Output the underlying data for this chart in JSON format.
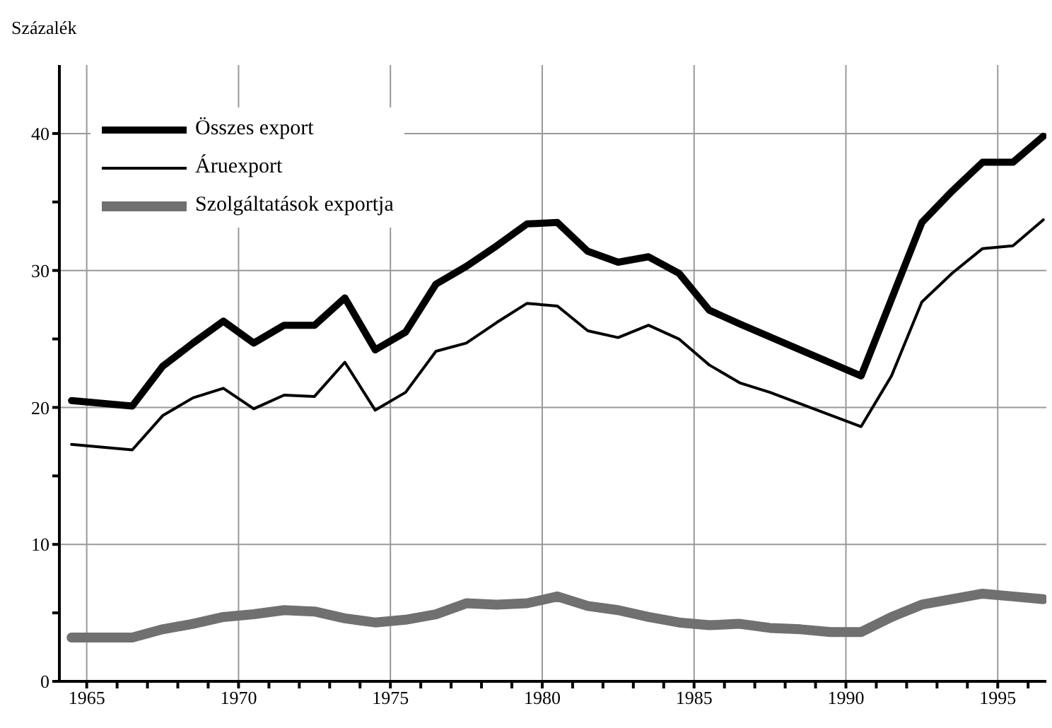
{
  "chart_data": {
    "type": "line",
    "ylabel": "Százalék",
    "xlim": [
      1964.1,
      1996.6
    ],
    "ylim": [
      0,
      45
    ],
    "xticks": [
      1965,
      {
        "value": 1966,
        "label": null
      },
      {
        "value": 1967,
        "label": null
      },
      {
        "value": 1968,
        "label": null
      },
      {
        "value": 1969,
        "label": null
      },
      1970,
      {
        "value": 1971,
        "label": null
      },
      {
        "value": 1972,
        "label": null
      },
      {
        "value": 1973,
        "label": null
      },
      {
        "value": 1974,
        "label": null
      },
      1975,
      {
        "value": 1976,
        "label": null
      },
      {
        "value": 1977,
        "label": null
      },
      {
        "value": 1978,
        "label": null
      },
      {
        "value": 1979,
        "label": null
      },
      1980,
      {
        "value": 1981,
        "label": null
      },
      {
        "value": 1982,
        "label": null
      },
      {
        "value": 1983,
        "label": null
      },
      {
        "value": 1984,
        "label": null
      },
      1985,
      {
        "value": 1986,
        "label": null
      },
      {
        "value": 1987,
        "label": null
      },
      {
        "value": 1988,
        "label": null
      },
      {
        "value": 1989,
        "label": null
      },
      1990,
      {
        "value": 1991,
        "label": null
      },
      {
        "value": 1992,
        "label": null
      },
      {
        "value": 1993,
        "label": null
      },
      {
        "value": 1994,
        "label": null
      },
      1995,
      {
        "value": 1996,
        "label": null
      }
    ],
    "yticks": [
      0,
      {
        "value": 5,
        "label": null
      },
      10,
      {
        "value": 15,
        "label": null
      },
      20,
      {
        "value": 25,
        "label": null
      },
      30,
      {
        "value": 35,
        "label": null
      },
      40
    ],
    "grid": true,
    "legend": "top left",
    "marker": "none",
    "line_style": "solid",
    "series": [
      {
        "name": "Összes export",
        "color": "#000000",
        "x": [
          1964.5,
          1966.5,
          1967.5,
          1968.5,
          1969.5,
          1970.5,
          1971.5,
          1972.5,
          1973.5,
          1974.5,
          1975.5,
          1976.5,
          1977.5,
          1978.5,
          1979.5,
          1980.5,
          1981.5,
          1982.5,
          1983.5,
          1984.5,
          1985.5,
          1986.5,
          1990.5,
          1991.5,
          1992.5,
          1993.5,
          1994.5,
          1995.5,
          1996.5
        ],
        "values": [
          20.5,
          20.1,
          23.0,
          24.7,
          26.3,
          24.7,
          26.0,
          26.0,
          28.0,
          24.2,
          25.5,
          29.0,
          30.3,
          31.8,
          33.4,
          33.5,
          31.4,
          30.6,
          31.0,
          29.8,
          27.1,
          26.1,
          22.3,
          27.9,
          33.5,
          35.8,
          37.9,
          37.9,
          39.8
        ]
      },
      {
        "name": "Áruexport",
        "color": "#000000",
        "x": [
          1964.5,
          1966.5,
          1967.5,
          1968.5,
          1969.5,
          1970.5,
          1971.5,
          1972.5,
          1973.5,
          1974.5,
          1975.5,
          1976.5,
          1977.5,
          1978.5,
          1979.5,
          1980.5,
          1981.5,
          1982.5,
          1983.5,
          1984.5,
          1985.5,
          1986.5,
          1987.5,
          1990.5,
          1991.5,
          1992.5,
          1993.5,
          1994.5,
          1995.5,
          1996.5
        ],
        "values": [
          17.3,
          16.9,
          19.4,
          20.7,
          21.4,
          19.9,
          20.9,
          20.8,
          23.3,
          19.8,
          21.1,
          24.1,
          24.7,
          26.2,
          27.6,
          27.4,
          25.6,
          25.1,
          26.0,
          25.0,
          23.1,
          21.8,
          21.1,
          18.6,
          22.3,
          27.7,
          29.8,
          31.6,
          31.8,
          33.7
        ]
      },
      {
        "name": "Szolgáltatások exportja",
        "color": "#707070",
        "x": [
          1964.5,
          1966.5,
          1967.5,
          1968.5,
          1969.5,
          1970.5,
          1971.5,
          1972.5,
          1973.5,
          1974.5,
          1975.5,
          1976.5,
          1977.5,
          1978.5,
          1979.5,
          1980.5,
          1981.5,
          1982.5,
          1983.5,
          1984.5,
          1985.5,
          1986.5,
          1987.5,
          1988.5,
          1989.5,
          1990.5,
          1991.5,
          1992.5,
          1993.5,
          1994.5,
          1995.5,
          1996.5
        ],
        "values": [
          3.2,
          3.2,
          3.8,
          4.2,
          4.7,
          4.9,
          5.2,
          5.1,
          4.6,
          4.3,
          4.5,
          4.9,
          5.7,
          5.6,
          5.7,
          6.2,
          5.5,
          5.2,
          4.7,
          4.3,
          4.1,
          4.2,
          3.9,
          3.8,
          3.6,
          3.6,
          4.7,
          5.6,
          6.0,
          6.4,
          6.2,
          6.0
        ]
      }
    ]
  }
}
